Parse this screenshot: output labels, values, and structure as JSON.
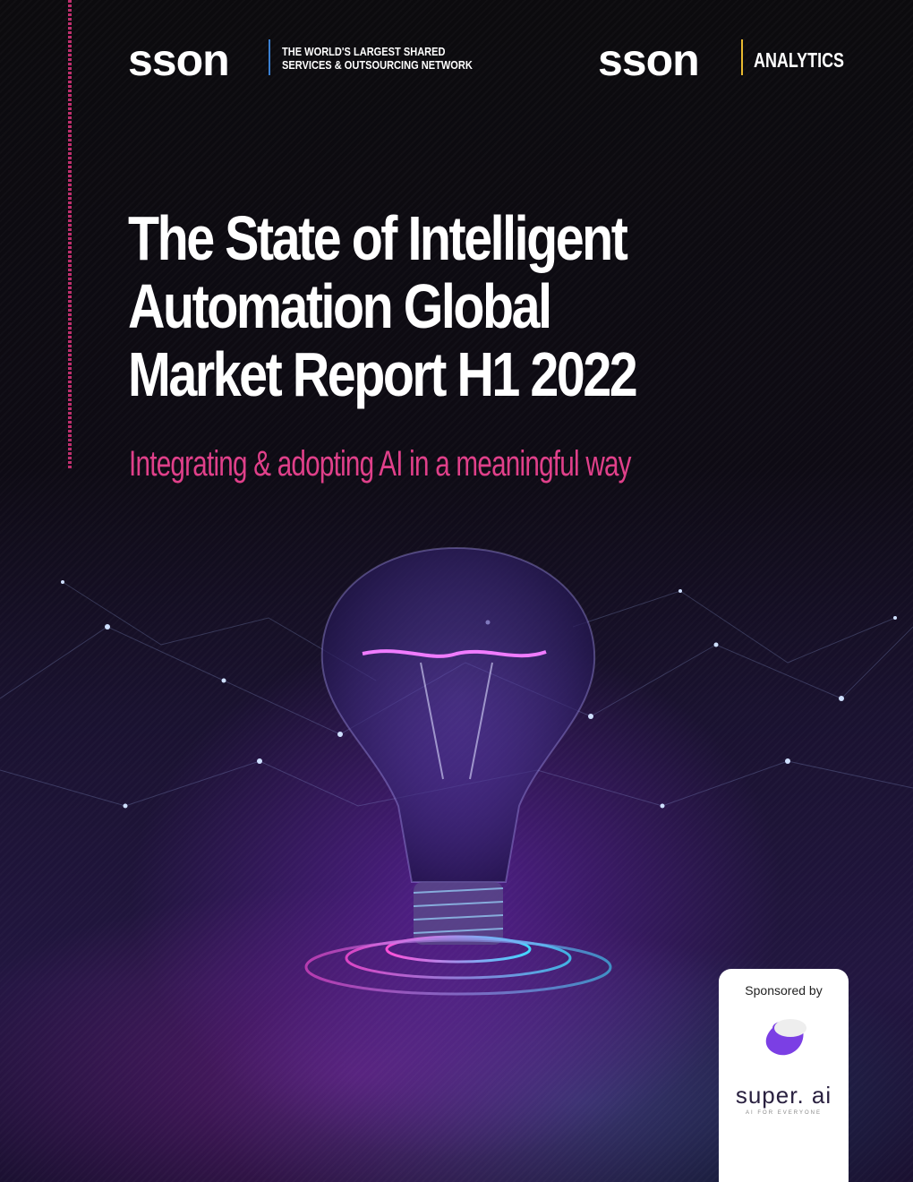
{
  "header": {
    "logo_left": "sson",
    "tagline": [
      "THE WORLD'S LARGEST SHARED",
      "SERVICES & OUTSOURCING NETWORK"
    ],
    "logo_right": "sson",
    "division": "ANALYTICS"
  },
  "title": [
    "The State of Intelligent",
    "Automation Global",
    "Market Report H1 2022"
  ],
  "subtitle": "Integrating & adopting AI in a meaningful way",
  "sponsor": {
    "label": "Sponsored by",
    "name": "super. ai",
    "motto": "AI FOR EVERYONE"
  }
}
